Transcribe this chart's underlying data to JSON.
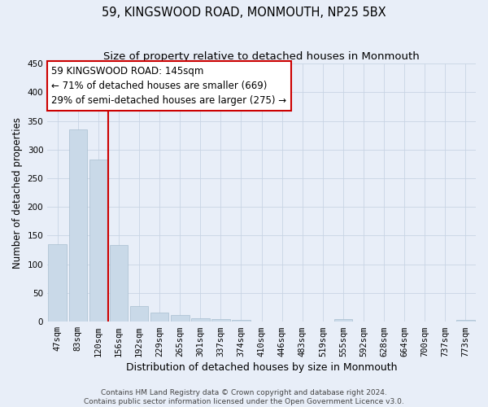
{
  "title": "59, KINGSWOOD ROAD, MONMOUTH, NP25 5BX",
  "subtitle": "Size of property relative to detached houses in Monmouth",
  "xlabel": "Distribution of detached houses by size in Monmouth",
  "ylabel": "Number of detached properties",
  "categories": [
    "47sqm",
    "83sqm",
    "120sqm",
    "156sqm",
    "192sqm",
    "229sqm",
    "265sqm",
    "301sqm",
    "337sqm",
    "374sqm",
    "410sqm",
    "446sqm",
    "483sqm",
    "519sqm",
    "555sqm",
    "592sqm",
    "628sqm",
    "664sqm",
    "700sqm",
    "737sqm",
    "773sqm"
  ],
  "values": [
    135,
    335,
    282,
    133,
    27,
    16,
    11,
    6,
    5,
    3,
    0,
    0,
    0,
    0,
    4,
    0,
    0,
    0,
    0,
    0,
    3
  ],
  "bar_color": "#c9d9e8",
  "bar_edge_color": "#a8bfd0",
  "vline_color": "#cc0000",
  "annotation_text": "59 KINGSWOOD ROAD: 145sqm\n← 71% of detached houses are smaller (669)\n29% of semi-detached houses are larger (275) →",
  "annotation_box_facecolor": "#ffffff",
  "annotation_box_edgecolor": "#cc0000",
  "ylim": [
    0,
    450
  ],
  "yticks": [
    0,
    50,
    100,
    150,
    200,
    250,
    300,
    350,
    400,
    450
  ],
  "grid_color": "#c8d4e4",
  "background_color": "#e8eef8",
  "footer_line1": "Contains HM Land Registry data © Crown copyright and database right 2024.",
  "footer_line2": "Contains public sector information licensed under the Open Government Licence v3.0.",
  "title_fontsize": 10.5,
  "subtitle_fontsize": 9.5,
  "xlabel_fontsize": 9,
  "ylabel_fontsize": 8.5,
  "tick_fontsize": 7.5,
  "annotation_fontsize": 8.5,
  "footer_fontsize": 6.5
}
